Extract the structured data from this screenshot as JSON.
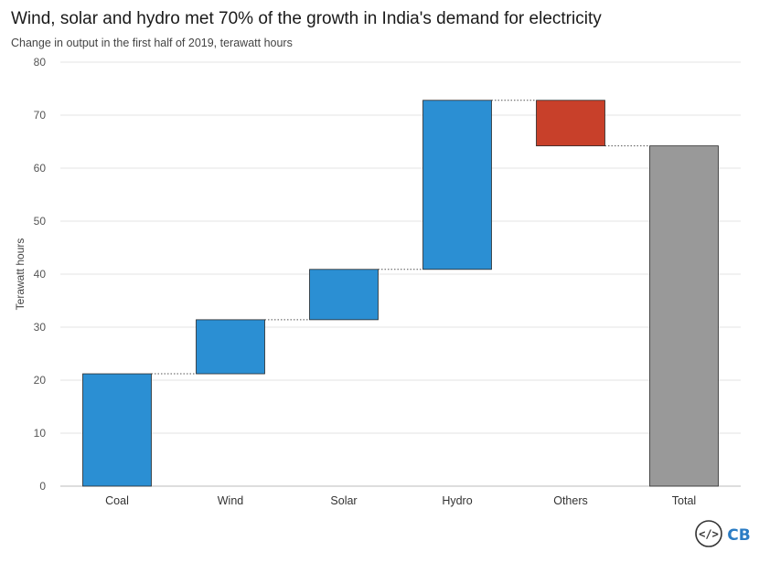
{
  "title": "Wind, solar and hydro met 70% of the growth in India's demand for electricity",
  "subtitle": "Change in output in the first half of 2019, terawatt hours",
  "logo": {
    "code_icon": "</>",
    "text": "CB"
  },
  "colors": {
    "increase": "#2b8fd3",
    "decrease": "#c8402a",
    "total": "#999999",
    "grid": "#e3e3e3",
    "connector": "#555555"
  },
  "chart_data": {
    "type": "bar",
    "subtype": "waterfall",
    "title": "Wind, solar and hydro met 70% of the growth in India's demand for electricity",
    "subtitle": "Change in output in the first half of 2019, terawatt hours",
    "xlabel": "",
    "ylabel": "Terawatt hours",
    "ylim": [
      0,
      80
    ],
    "yticks": [
      0,
      10,
      20,
      30,
      40,
      50,
      60,
      70,
      80
    ],
    "grid": true,
    "legend": "none",
    "categories": [
      "Coal",
      "Wind",
      "Solar",
      "Hydro",
      "Others",
      "Total"
    ],
    "bars": [
      {
        "category": "Coal",
        "start": 0,
        "end": 21.2,
        "kind": "increase"
      },
      {
        "category": "Wind",
        "start": 21.2,
        "end": 31.4,
        "kind": "increase"
      },
      {
        "category": "Solar",
        "start": 31.4,
        "end": 40.9,
        "kind": "increase"
      },
      {
        "category": "Hydro",
        "start": 40.9,
        "end": 72.8,
        "kind": "increase"
      },
      {
        "category": "Others",
        "start": 72.8,
        "end": 64.2,
        "kind": "decrease"
      },
      {
        "category": "Total",
        "start": 0,
        "end": 64.2,
        "kind": "total"
      }
    ]
  }
}
